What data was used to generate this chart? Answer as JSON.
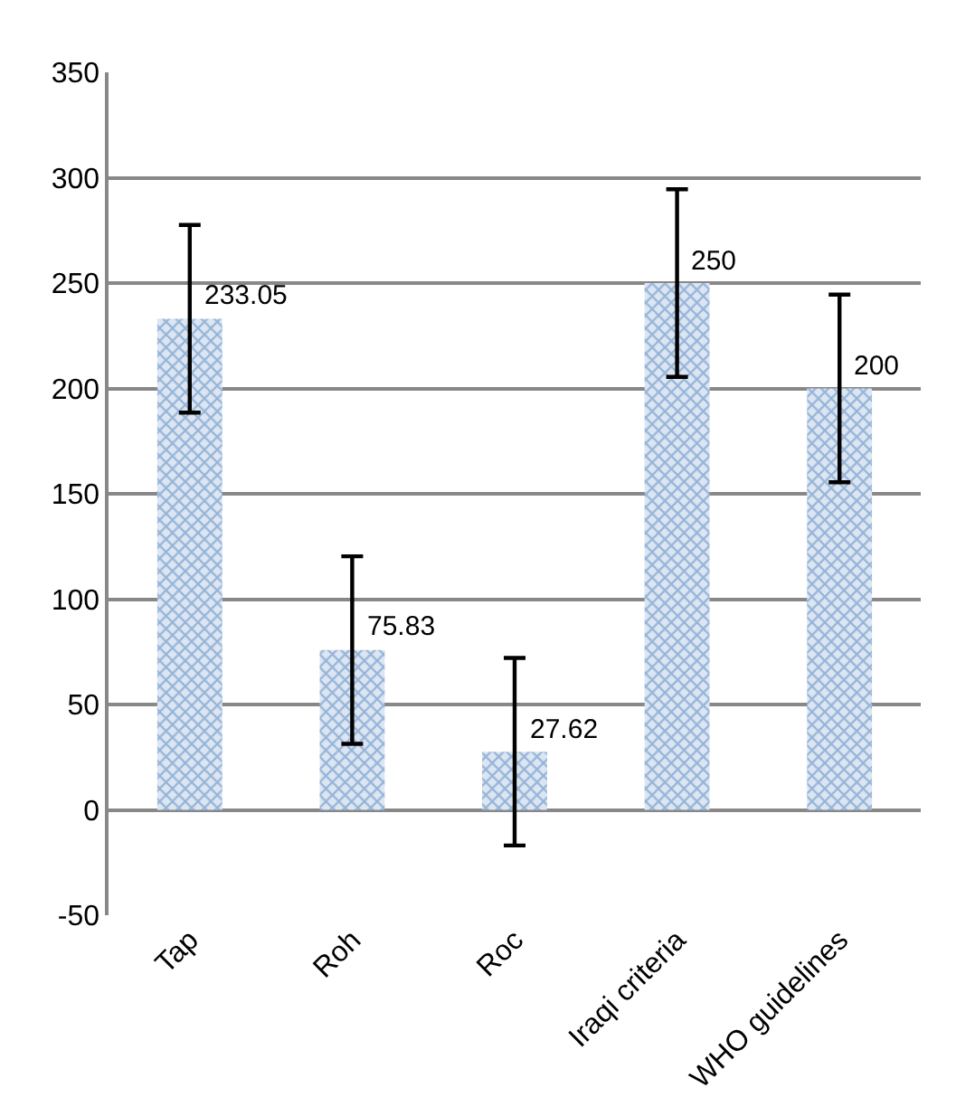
{
  "chart_data": {
    "type": "bar",
    "categories": [
      "Tap",
      "Roh",
      "Roc",
      "Iraqi criteria",
      "WHO guidelines"
    ],
    "values": [
      233.05,
      75.83,
      27.62,
      250,
      200
    ],
    "errors": [
      44.5,
      44.5,
      44.5,
      44.5,
      44.5
    ],
    "color": "#4f81bd",
    "data_labels": true,
    "ylim": [
      -50,
      350
    ],
    "yticks": [
      -50,
      0,
      50,
      100,
      150,
      200,
      250,
      300,
      350
    ],
    "grid": "y",
    "legend": false
  }
}
